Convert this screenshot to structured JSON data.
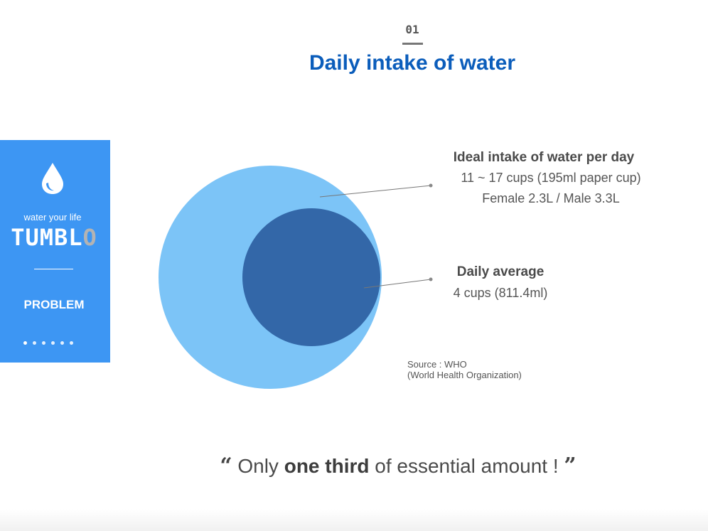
{
  "header": {
    "section_number": "01",
    "title": "Daily intake of water"
  },
  "sidebar": {
    "tagline": "water your life",
    "brand_main": "TUMBL",
    "brand_last": "O",
    "section_label": "PROBLEM",
    "dot_count": 6,
    "active_dot": 0,
    "icon": "water-drop-icon",
    "background_color": "#3d96f3"
  },
  "diagram": {
    "outer_circle": {
      "label_title": "Ideal intake of water per day",
      "label_line1": "11 ~ 17 cups (195ml paper cup)",
      "label_line2": "Female 2.3L / Male 3.3L",
      "color": "#7cc4f7"
    },
    "inner_circle": {
      "label_title": "Daily average",
      "label_value": "4 cups (811.4ml)",
      "color": "#3367a8"
    },
    "source_line1": "Source :  WHO",
    "source_line2": "(World Health Organization)"
  },
  "quote": {
    "open": "“",
    "before": " Only ",
    "bold": "one third",
    "after": " of essential amount ! ",
    "close": "”"
  },
  "colors": {
    "title": "#0b5dbb",
    "text": "#555555"
  }
}
